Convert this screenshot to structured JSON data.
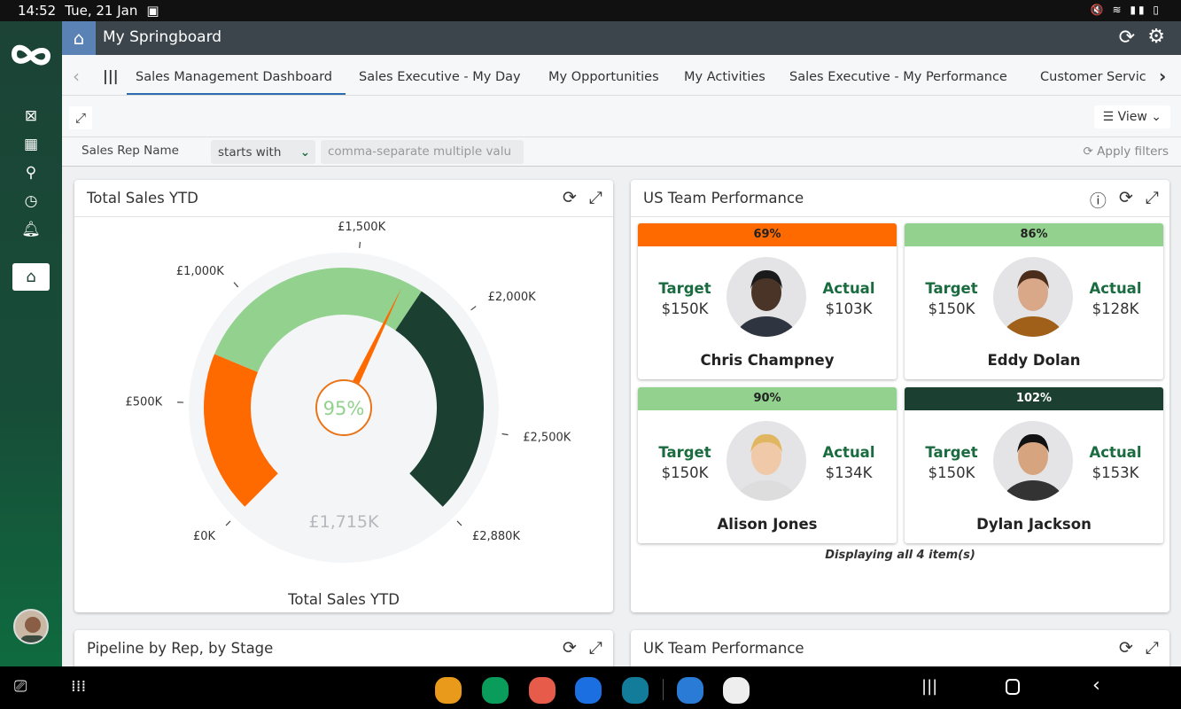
{
  "status_bar": {
    "time": "14:52",
    "date": "Tue, 21 Jan"
  },
  "header": {
    "title": "My Springboard"
  },
  "tabs": [
    "Sales Management Dashboard",
    "Sales Executive - My Day",
    "My Opportunities",
    "My Activities",
    "Sales Executive - My Performance",
    "Customer Servic"
  ],
  "toolbar": {
    "view_label": "View"
  },
  "filter": {
    "field": "Sales Rep Name",
    "operator": "starts with",
    "placeholder": "comma-separate multiple valu",
    "apply": "Apply filters"
  },
  "gauge_panel": {
    "title": "Total Sales YTD",
    "footer": "Total Sales YTD"
  },
  "chart_data": {
    "type": "gauge",
    "title": "Total Sales YTD",
    "value": 1715,
    "value_label": "£1,715K",
    "percent_label": "95%",
    "min": 0,
    "max": 2880,
    "ticks": [
      {
        "v": 0,
        "label": "£0K"
      },
      {
        "v": 500,
        "label": "£500K"
      },
      {
        "v": 1000,
        "label": "£1,000K"
      },
      {
        "v": 1500,
        "label": "£1,500K"
      },
      {
        "v": 2000,
        "label": "£2,000K"
      },
      {
        "v": 2500,
        "label": "£2,500K"
      },
      {
        "v": 2880,
        "label": "£2,880K"
      }
    ],
    "bands": [
      {
        "from": 0,
        "to": 720,
        "color": "#ff6a00"
      },
      {
        "from": 720,
        "to": 1800,
        "color": "#92d18e"
      },
      {
        "from": 1800,
        "to": 2880,
        "color": "#1b4031"
      }
    ]
  },
  "us_panel": {
    "title": "US Team Performance",
    "footer": "Displaying all 4 item(s)",
    "target_label": "Target",
    "actual_label": "Actual",
    "reps": [
      {
        "name": "Chris Champney",
        "pct": "69%",
        "target": "$150K",
        "actual": "$103K",
        "color": "#ff6a00",
        "text": "#222"
      },
      {
        "name": "Eddy Dolan",
        "pct": "86%",
        "target": "$150K",
        "actual": "$128K",
        "color": "#92d18e",
        "text": "#222"
      },
      {
        "name": "Alison Jones",
        "pct": "90%",
        "target": "$150K",
        "actual": "$134K",
        "color": "#92d18e",
        "text": "#222"
      },
      {
        "name": "Dylan Jackson",
        "pct": "102%",
        "target": "$150K",
        "actual": "$153K",
        "color": "#1b4031",
        "text": "#fff"
      }
    ]
  },
  "pipeline_panel": {
    "title": "Pipeline by Rep, by Stage"
  },
  "uk_panel": {
    "title": "UK Team Performance"
  }
}
